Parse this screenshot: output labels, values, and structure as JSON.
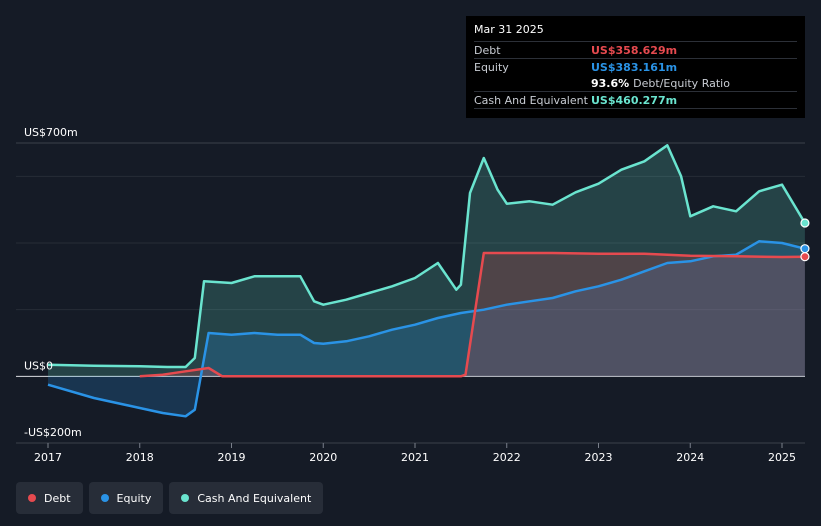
{
  "tooltip": {
    "date": "Mar 31 2025",
    "rows": [
      {
        "label": "Debt",
        "value": "US$358.629m",
        "color": "#e64a4f"
      },
      {
        "label": "Equity",
        "value": "US$383.161m",
        "color": "#2a93e6"
      },
      {
        "label": "",
        "value": "93.6%",
        "suffix": "Debt/Equity Ratio",
        "color": "#ffffff"
      },
      {
        "label": "Cash And Equivalent",
        "value": "US$460.277m",
        "color": "#6ae4cf"
      }
    ]
  },
  "legend": [
    {
      "label": "Debt",
      "color": "#e64a4f"
    },
    {
      "label": "Equity",
      "color": "#2a93e6"
    },
    {
      "label": "Cash And Equivalent",
      "color": "#6ae4cf"
    }
  ],
  "chart_data": {
    "type": "area",
    "ylim": [
      -200,
      700
    ],
    "y_tick_labels": [
      {
        "value": 700,
        "label": "US$700m"
      },
      {
        "value": 0,
        "label": "US$0"
      },
      {
        "value": -200,
        "label": "-US$200m"
      }
    ],
    "xlim": [
      2017,
      2025.25
    ],
    "x_tick_labels": [
      "2017",
      "2018",
      "2019",
      "2020",
      "2021",
      "2022",
      "2023",
      "2024",
      "2025"
    ],
    "grid": true,
    "legend_position": "bottom-left",
    "series": [
      {
        "name": "Cash And Equivalent",
        "color": "#6ae4cf",
        "points": [
          [
            2017.0,
            35
          ],
          [
            2017.5,
            32
          ],
          [
            2018.0,
            30
          ],
          [
            2018.3,
            28
          ],
          [
            2018.5,
            28
          ],
          [
            2018.6,
            55
          ],
          [
            2018.7,
            285
          ],
          [
            2019.0,
            280
          ],
          [
            2019.25,
            300
          ],
          [
            2019.5,
            300
          ],
          [
            2019.75,
            300
          ],
          [
            2019.9,
            225
          ],
          [
            2020.0,
            215
          ],
          [
            2020.25,
            230
          ],
          [
            2020.5,
            250
          ],
          [
            2020.75,
            270
          ],
          [
            2021.0,
            295
          ],
          [
            2021.25,
            340
          ],
          [
            2021.45,
            260
          ],
          [
            2021.5,
            275
          ],
          [
            2021.6,
            550
          ],
          [
            2021.75,
            655
          ],
          [
            2021.9,
            560
          ],
          [
            2022.0,
            518
          ],
          [
            2022.25,
            525
          ],
          [
            2022.5,
            515
          ],
          [
            2022.75,
            552
          ],
          [
            2023.0,
            578
          ],
          [
            2023.25,
            620
          ],
          [
            2023.5,
            645
          ],
          [
            2023.75,
            693
          ],
          [
            2023.9,
            600
          ],
          [
            2024.0,
            480
          ],
          [
            2024.25,
            510
          ],
          [
            2024.5,
            495
          ],
          [
            2024.75,
            555
          ],
          [
            2025.0,
            575
          ],
          [
            2025.25,
            460
          ]
        ]
      },
      {
        "name": "Equity",
        "color": "#2a93e6",
        "points": [
          [
            2017.0,
            -25
          ],
          [
            2017.5,
            -65
          ],
          [
            2018.0,
            -95
          ],
          [
            2018.25,
            -110
          ],
          [
            2018.5,
            -120
          ],
          [
            2018.6,
            -100
          ],
          [
            2018.75,
            130
          ],
          [
            2019.0,
            125
          ],
          [
            2019.25,
            130
          ],
          [
            2019.5,
            125
          ],
          [
            2019.75,
            125
          ],
          [
            2019.9,
            100
          ],
          [
            2020.0,
            98
          ],
          [
            2020.25,
            105
          ],
          [
            2020.5,
            120
          ],
          [
            2020.75,
            140
          ],
          [
            2021.0,
            155
          ],
          [
            2021.25,
            175
          ],
          [
            2021.5,
            190
          ],
          [
            2021.75,
            200
          ],
          [
            2022.0,
            215
          ],
          [
            2022.25,
            225
          ],
          [
            2022.5,
            235
          ],
          [
            2022.75,
            255
          ],
          [
            2023.0,
            270
          ],
          [
            2023.25,
            290
          ],
          [
            2023.5,
            315
          ],
          [
            2023.75,
            340
          ],
          [
            2024.0,
            345
          ],
          [
            2024.25,
            360
          ],
          [
            2024.5,
            365
          ],
          [
            2024.75,
            405
          ],
          [
            2025.0,
            400
          ],
          [
            2025.25,
            383
          ]
        ]
      },
      {
        "name": "Debt",
        "color": "#e64a4f",
        "points": [
          [
            2018.0,
            0
          ],
          [
            2018.25,
            5
          ],
          [
            2018.5,
            15
          ],
          [
            2018.75,
            25
          ],
          [
            2018.9,
            0
          ],
          [
            2019.0,
            0
          ],
          [
            2019.5,
            0
          ],
          [
            2020.0,
            0
          ],
          [
            2020.5,
            0
          ],
          [
            2021.0,
            0
          ],
          [
            2021.5,
            0
          ],
          [
            2021.55,
            5
          ],
          [
            2021.75,
            370
          ],
          [
            2022.0,
            370
          ],
          [
            2022.5,
            370
          ],
          [
            2023.0,
            368
          ],
          [
            2023.5,
            368
          ],
          [
            2024.0,
            362
          ],
          [
            2024.5,
            360
          ],
          [
            2025.0,
            358
          ],
          [
            2025.25,
            359
          ]
        ]
      }
    ]
  }
}
